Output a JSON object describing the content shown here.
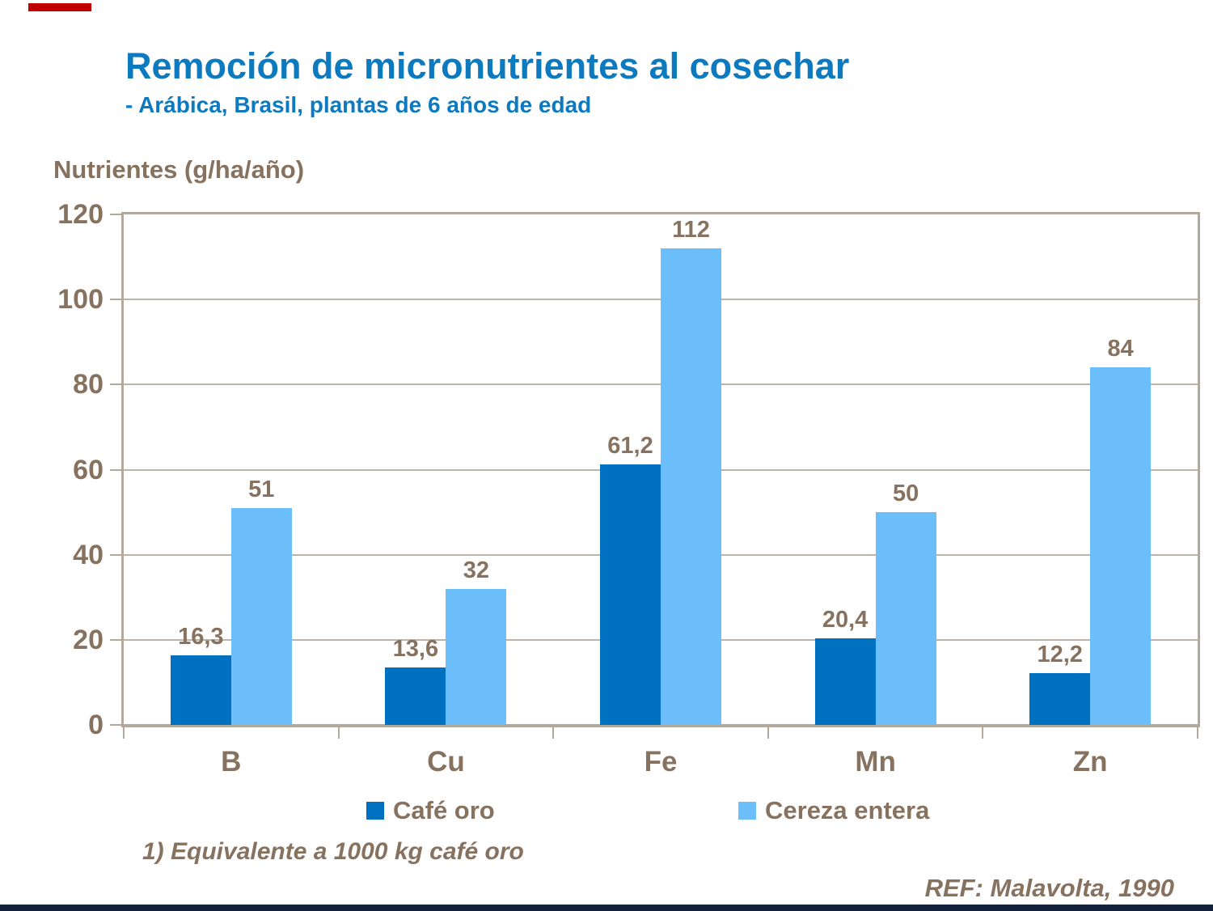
{
  "page": {
    "title": "Remoción de micronutrientes al cosechar",
    "subtitle": "- Arábica, Brasil, plantas de 6 años de edad",
    "footnote": "1) Equivalente a 1000 kg café oro",
    "reference": "REF: Malavolta, 1990"
  },
  "colors": {
    "title_blue": "#0d7ac0",
    "text_brown": "#877260",
    "series_dark_blue": "#0070c0",
    "series_light_blue": "#6cbefa",
    "frame": "#b2a89b",
    "gridline": "#bcb4a9",
    "accent_red": "#c00000",
    "bottom_bar_navy": "#14213c"
  },
  "chart_data": {
    "type": "bar",
    "title": "Nutrientes (g/ha/año)",
    "categories": [
      "B",
      "Cu",
      "Fe",
      "Mn",
      "Zn"
    ],
    "series": [
      {
        "name": "Café oro",
        "color_key": "series_dark_blue",
        "values": [
          16.3,
          13.6,
          61.2,
          20.4,
          12.2
        ],
        "labels": [
          "16,3",
          "13,6",
          "61,2",
          "20,4",
          "12,2"
        ]
      },
      {
        "name": "Cereza entera",
        "color_key": "series_light_blue",
        "values": [
          51,
          32,
          112,
          50,
          84
        ],
        "labels": [
          "51",
          "32",
          "112",
          "50",
          "84"
        ]
      }
    ],
    "xlabel": "",
    "ylabel": "Nutrientes (g/ha/año)",
    "ylim": [
      0,
      120
    ],
    "ytick_interval": 20,
    "yticks": [
      "0",
      "20",
      "40",
      "60",
      "80",
      "100",
      "120"
    ],
    "grid": true,
    "legend_position": "bottom"
  }
}
